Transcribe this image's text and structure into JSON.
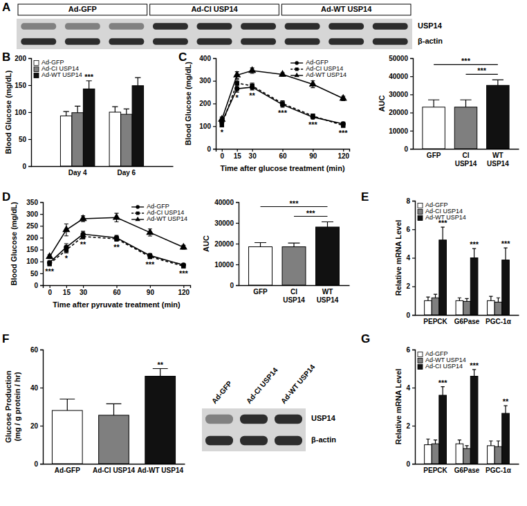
{
  "chart_data": [
    {
      "type": "blot",
      "title": "A",
      "lanes": [
        "Ad-GFP",
        "Ad-CI USP14",
        "Ad-WT USP14"
      ],
      "rows": [
        "USP14",
        "β-actin"
      ]
    },
    {
      "type": "bar",
      "title": "B",
      "categories": [
        "Day 4",
        "Day 6"
      ],
      "series": [
        {
          "name": "Ad-GFP",
          "color": "#ffffff",
          "values": [
            93,
            100
          ],
          "errors": [
            8,
            10
          ]
        },
        {
          "name": "Ad-CI USP14",
          "color": "#7f7f7f",
          "values": [
            99,
            96
          ],
          "errors": [
            12,
            10
          ]
        },
        {
          "name": "Ad-WT USP14",
          "color": "#111111",
          "values": [
            143,
            149
          ],
          "errors": [
            15,
            15
          ],
          "annotations": [
            "***",
            null
          ]
        }
      ],
      "y_label": "Blood Glucose (mg/dL)",
      "ylim": [
        0,
        200
      ],
      "yticks": [
        0,
        50,
        100,
        150,
        200
      ],
      "legend": "top-left"
    },
    {
      "type": "line",
      "title": "C",
      "x": [
        0,
        15,
        30,
        60,
        90,
        120
      ],
      "series": [
        {
          "name": "Ad-GFP",
          "color": "#000000",
          "marker": "circle",
          "line_style": "solid",
          "values": [
            118,
            265,
            272,
            195,
            140,
            110
          ],
          "errors": [
            10,
            15,
            12,
            12,
            8,
            8
          ]
        },
        {
          "name": "Ad-CI USP14",
          "color": "#000000",
          "marker": "square",
          "line_style": "dashed",
          "values": [
            105,
            290,
            278,
            200,
            145,
            103
          ],
          "errors": [
            8,
            15,
            12,
            12,
            8,
            8
          ]
        },
        {
          "name": "Ad-WT USP14",
          "color": "#000000",
          "marker": "triangle",
          "line_style": "solid",
          "values": [
            130,
            325,
            345,
            328,
            285,
            222
          ],
          "errors": [
            10,
            15,
            12,
            8,
            15,
            10
          ]
        }
      ],
      "annotations": [
        "*",
        "*",
        "**",
        "***",
        "***",
        "***"
      ],
      "x_label": "Time after glucose treatment (min)",
      "y_label": "Blood Glucose (mg/dL)",
      "xlim": [
        -6,
        126
      ],
      "xticks": [
        0,
        15,
        30,
        60,
        90,
        120
      ],
      "ylim": [
        0,
        400
      ],
      "yticks": [
        0,
        100,
        200,
        300,
        400
      ],
      "legend": "top-right"
    },
    {
      "type": "bar",
      "categories": [
        "GFP",
        "CI\nUSP14",
        "WT\nUSP14"
      ],
      "values": [
        23000,
        23000,
        35000
      ],
      "errors": [
        4000,
        4000,
        3000
      ],
      "colors": [
        "#ffffff",
        "#7f7f7f",
        "#111111"
      ],
      "brackets": [
        {
          "from": 0,
          "to": 2,
          "text": "***"
        },
        {
          "from": 1,
          "to": 2,
          "text": "***"
        }
      ],
      "y_label": "AUC",
      "ylim": [
        0,
        50000
      ],
      "yticks": [
        0,
        10000,
        20000,
        30000,
        40000,
        50000
      ]
    },
    {
      "type": "line",
      "title": "D",
      "x": [
        0,
        15,
        30,
        60,
        90,
        120
      ],
      "series": [
        {
          "name": "Ad-GFP",
          "color": "#000000",
          "marker": "circle",
          "line_style": "solid",
          "values": [
            95,
            160,
            215,
            200,
            125,
            85
          ],
          "errors": [
            8,
            15,
            12,
            10,
            8,
            6
          ]
        },
        {
          "name": "Ad-CI USP14",
          "color": "#000000",
          "marker": "square",
          "line_style": "dashed",
          "values": [
            90,
            148,
            205,
            195,
            120,
            80
          ],
          "errors": [
            8,
            12,
            10,
            10,
            8,
            6
          ]
        },
        {
          "name": "Ad-WT USP14",
          "color": "#000000",
          "marker": "triangle",
          "line_style": "solid",
          "values": [
            120,
            233,
            280,
            285,
            222,
            160
          ],
          "errors": [
            8,
            25,
            12,
            18,
            15,
            8
          ]
        }
      ],
      "annotations": [
        "***",
        "*",
        "**",
        "**",
        "***",
        "***"
      ],
      "x_label": "Time after pyruvate treatment (min)",
      "y_label": "Blood Glucose (mg/dL)",
      "xlim": [
        -6,
        126
      ],
      "xticks": [
        0,
        15,
        30,
        60,
        90,
        120
      ],
      "ylim": [
        0,
        350
      ],
      "yticks": [
        0,
        50,
        100,
        150,
        200,
        250,
        300,
        350
      ],
      "legend": "top-right"
    },
    {
      "type": "bar",
      "categories": [
        "GFP",
        "CI\nUSP14",
        "WT\nUSP14"
      ],
      "values": [
        18500,
        18500,
        28000
      ],
      "errors": [
        2000,
        1800,
        2500
      ],
      "colors": [
        "#ffffff",
        "#7f7f7f",
        "#111111"
      ],
      "brackets": [
        {
          "from": 0,
          "to": 2,
          "text": "***"
        },
        {
          "from": 1,
          "to": 2,
          "text": "***"
        }
      ],
      "y_label": "AUC",
      "ylim": [
        0,
        40000
      ],
      "yticks": [
        0,
        10000,
        20000,
        30000,
        40000
      ]
    },
    {
      "type": "bar",
      "title": "E",
      "categories": [
        "PEPCK",
        "G6Pase",
        "PGC-1α"
      ],
      "series": [
        {
          "name": "Ad-GFP",
          "color": "#ffffff",
          "values": [
            1,
            1,
            1
          ],
          "errors": [
            0.25,
            0.2,
            0.3
          ]
        },
        {
          "name": "Ad-CI USP14",
          "color": "#7f7f7f",
          "values": [
            1.2,
            0.95,
            0.9
          ],
          "errors": [
            0.25,
            0.2,
            0.3
          ]
        },
        {
          "name": "Ad-WT USP14",
          "color": "#111111",
          "values": [
            5.25,
            4.0,
            3.85
          ],
          "errors": [
            0.9,
            0.65,
            0.85
          ],
          "annotations": [
            "***",
            "***",
            "***"
          ]
        }
      ],
      "y_label": "Relative mRNA Level",
      "ylim": [
        0,
        8
      ],
      "yticks": [
        0,
        2,
        4,
        6,
        8
      ],
      "legend": "top-left"
    },
    {
      "type": "bar",
      "title": "F",
      "categories": [
        "Ad-GFP",
        "Ad-CI USP14",
        "Ad-WT USP14"
      ],
      "values": [
        28,
        25.5,
        46
      ],
      "errors": [
        6,
        6,
        4
      ],
      "colors": [
        "#ffffff",
        "#7f7f7f",
        "#111111"
      ],
      "annotations": [
        null,
        null,
        "**"
      ],
      "y_label": "Glucose Production\n(mg / g protein / hr)",
      "ylim": [
        0,
        60
      ],
      "yticks": [
        0,
        20,
        40,
        60
      ]
    },
    {
      "type": "blot",
      "lanes": [
        "Ad-GFP",
        "Ad-CI USP14",
        "Ad-WT USP14"
      ],
      "rows": [
        "USP14",
        "β-actin"
      ]
    },
    {
      "type": "bar",
      "title": "G",
      "categories": [
        "PEPCK",
        "G6Pase",
        "PGC-1α"
      ],
      "series": [
        {
          "name": "Ad-GFP",
          "color": "#ffffff",
          "values": [
            1,
            1.05,
            0.95
          ],
          "errors": [
            0.3,
            0.2,
            0.25
          ]
        },
        {
          "name": "Ad-WT USP14",
          "color": "#7f7f7f",
          "values": [
            1.05,
            0.8,
            0.9
          ],
          "errors": [
            0.2,
            0.15,
            0.3
          ]
        },
        {
          "name": "Ad-CI USP14",
          "color": "#111111",
          "values": [
            3.6,
            4.6,
            2.65
          ],
          "errors": [
            0.45,
            0.35,
            0.4
          ],
          "annotations": [
            "***",
            "***",
            "**"
          ]
        }
      ],
      "y_label": "Relative mRNA Level",
      "ylim": [
        0,
        6
      ],
      "yticks": [
        0,
        2,
        4,
        6
      ],
      "legend": "top-left"
    }
  ]
}
